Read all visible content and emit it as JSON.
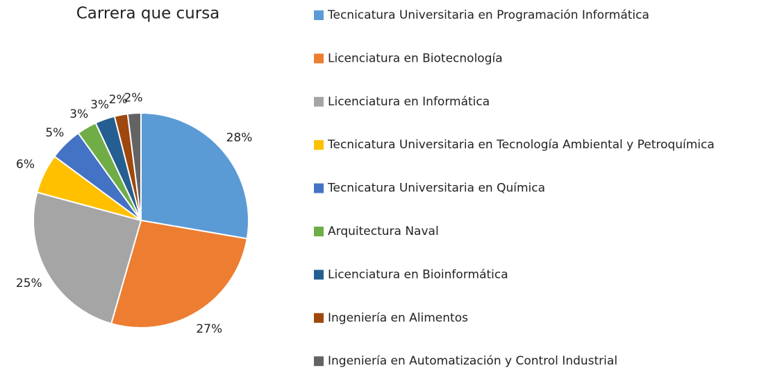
{
  "chart_data": {
    "type": "pie",
    "title": "Carrera que cursa",
    "categories": [
      "Tecnicatura Universitaria en Programación Informática",
      "Licenciatura en Biotecnología",
      "Licenciatura en Informática",
      "Tecnicatura Universitaria en Tecnología Ambiental y Petroquímica",
      "Tecnicatura Universitaria en Química",
      "Arquitectura Naval",
      "Licenciatura en Bioinformática",
      "Ingeniería en Alimentos",
      "Ingeniería en Automatización y Control Industrial"
    ],
    "values": [
      28,
      27,
      25,
      6,
      5,
      3,
      3,
      2,
      2
    ],
    "value_labels": [
      "28%",
      "27%",
      "25%",
      "6%",
      "5%",
      "3%",
      "3%",
      "2%",
      "2%"
    ],
    "colors": [
      "#5b9bd5",
      "#ed7d31",
      "#a5a5a5",
      "#ffc000",
      "#4472c4",
      "#70ad47",
      "#255e91",
      "#9e480e",
      "#636363"
    ],
    "legend": "right"
  }
}
